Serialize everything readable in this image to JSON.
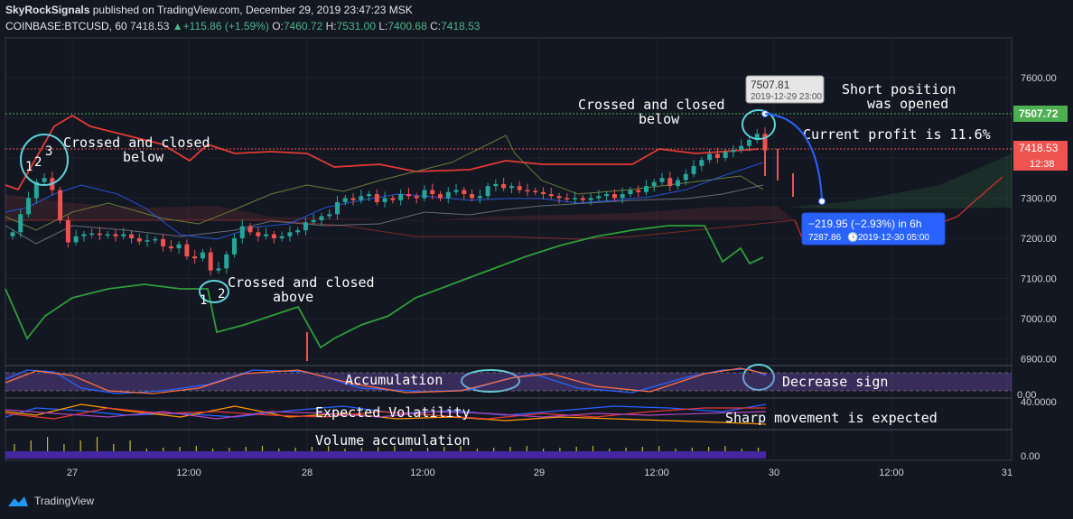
{
  "header": {
    "publisher": "SkyRockSignals",
    "published_text": "published on TradingView.com, December 29, 2019 23:47:23 MSK",
    "symbol": "COINBASE:BTCUSD, 60",
    "last": "7418.53",
    "change": "+115.86 (+1.59%)",
    "open_label": "O:",
    "open": "7460.72",
    "high_label": "H:",
    "high": "7531.00",
    "low_label": "L:",
    "low": "7400.68",
    "close_label": "C:",
    "close": "7418.53"
  },
  "footer": {
    "brand": "TradingView"
  },
  "colors": {
    "up": "#26a69a",
    "down": "#ef5350",
    "bg": "#131722",
    "annot_circle": "#5fd3d8",
    "callout": "#2962ff"
  },
  "chart_data": [
    {
      "type": "candlestick",
      "symbol": "COINBASE:BTCUSD",
      "interval": "60",
      "x_ticks": [
        "27",
        "12:00",
        "28",
        "12:00",
        "29",
        "12:00",
        "30",
        "12:00",
        "31"
      ],
      "y_ticks": [
        "7600.00",
        "7500.00",
        "7400.00",
        "7300.00",
        "7200.00",
        "7100.00",
        "7000.00",
        "6900.00"
      ],
      "ylim": [
        6880,
        7660
      ],
      "price_labels": {
        "level": "7507.72",
        "current": "7418.53",
        "countdown": "12:38"
      },
      "levels": {
        "short_entry": 7507.72,
        "current": 7418.53
      },
      "close_series": [
        7215,
        7260,
        7300,
        7340,
        7350,
        7320,
        7245,
        7190,
        7205,
        7210,
        7212,
        7208,
        7210,
        7205,
        7210,
        7200,
        7192,
        7195,
        7198,
        7180,
        7175,
        7185,
        7155,
        7150,
        7165,
        7120,
        7125,
        7160,
        7200,
        7230,
        7215,
        7205,
        7210,
        7200,
        7205,
        7215,
        7220,
        7240,
        7245,
        7255,
        7260,
        7290,
        7300,
        7295,
        7305,
        7310,
        7290,
        7300,
        7295,
        7310,
        7305,
        7300,
        7320,
        7310,
        7300,
        7315,
        7320,
        7310,
        7300,
        7305,
        7330,
        7335,
        7325,
        7330,
        7320,
        7318,
        7315,
        7310,
        7305,
        7300,
        7298,
        7300,
        7295,
        7300,
        7305,
        7310,
        7300,
        7310,
        7320,
        7315,
        7330,
        7340,
        7350,
        7330,
        7345,
        7360,
        7380,
        7395,
        7410,
        7400,
        7415,
        7420,
        7430,
        7445,
        7460,
        7418.53
      ],
      "tooltip": {
        "price": "7507.81",
        "time": "2019-12-29 23:00"
      },
      "measure": {
        "change": "−219.95 (−2.93%) in 6h",
        "price": "7287.86",
        "time": "2019-12-30  05:00"
      },
      "annotations": [
        {
          "id": "left",
          "text": [
            "Crossed and closed",
            "below"
          ],
          "markers": [
            "1",
            "2",
            "3"
          ]
        },
        {
          "id": "bottom",
          "text": [
            "Crossed and closed",
            "above"
          ],
          "markers": [
            "1",
            "2"
          ]
        },
        {
          "id": "right",
          "text": [
            "Crossed and closed",
            "below"
          ]
        },
        {
          "id": "short",
          "text": [
            "Short position",
            "was opened"
          ]
        },
        {
          "id": "profit",
          "text": [
            "Current profit is 11.6%"
          ]
        }
      ]
    },
    {
      "type": "line",
      "name": "oscillator",
      "y_ticks": [
        "0.00"
      ],
      "annotations": [
        "Accumulation",
        "Decrease sign"
      ]
    },
    {
      "type": "line",
      "name": "volatility",
      "y_ticks": [
        "40.0000"
      ],
      "annotations": [
        "Expected Volatility",
        "Sharp movement is expected"
      ]
    },
    {
      "type": "bar",
      "name": "volume",
      "y_ticks": [
        "0.00"
      ],
      "annotations": [
        "Volume accumulation"
      ]
    }
  ]
}
